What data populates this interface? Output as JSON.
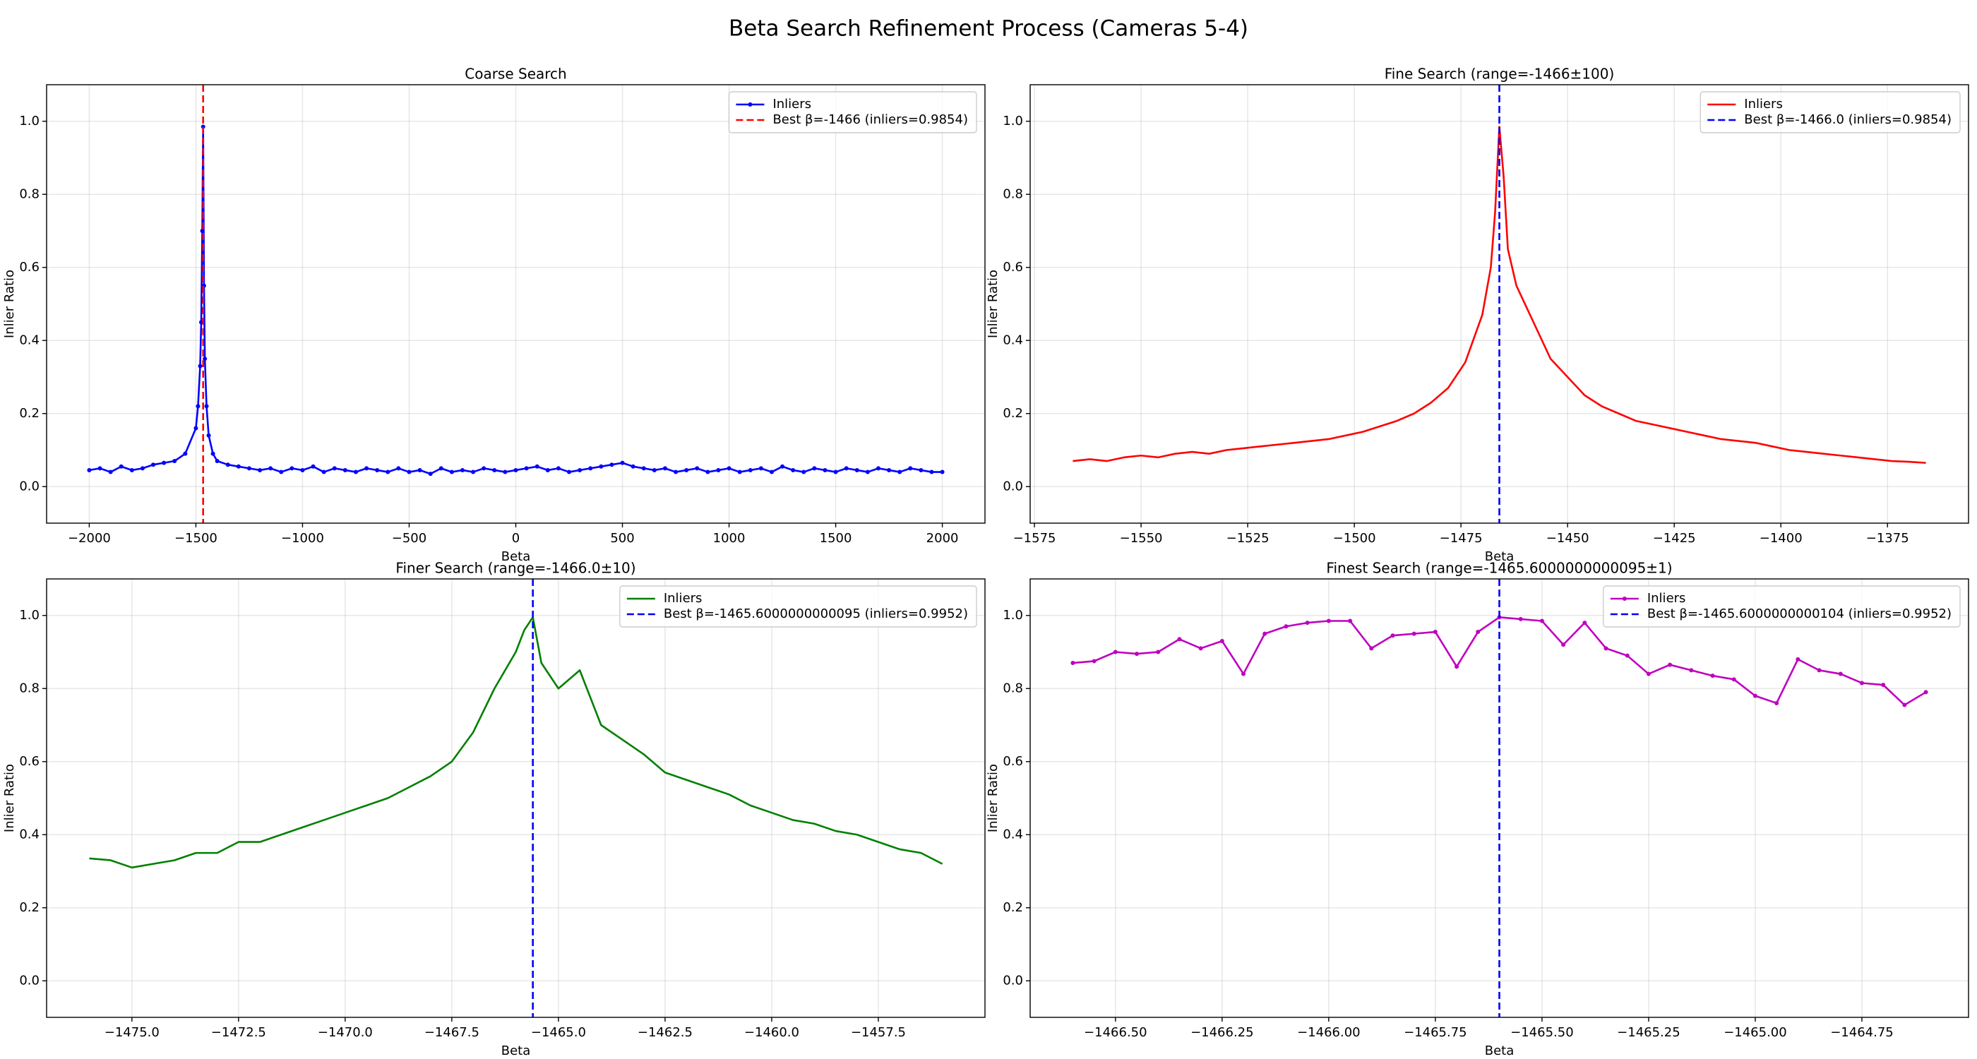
{
  "title": "Beta Search Refinement Process (Cameras 5-4)",
  "chart_data": [
    {
      "type": "line",
      "title": "Coarse Search",
      "x_label": "Beta",
      "y_label": "Inlier Ratio",
      "grid": true,
      "legend": "upper right",
      "xlim": [
        -2200,
        2200
      ],
      "ylim": [
        -0.1,
        1.1
      ],
      "xticks": [
        {
          "value": -2000,
          "label": "−2000"
        },
        {
          "value": -1500,
          "label": "−1500"
        },
        {
          "value": -1000,
          "label": "−1000"
        },
        {
          "value": -500,
          "label": "−500"
        },
        0,
        500,
        1000,
        1500,
        2000
      ],
      "yticks": [
        {
          "value": 0,
          "label": "0.0"
        },
        0.2,
        0.4,
        0.6,
        0.8,
        {
          "value": 1,
          "label": "1.0"
        }
      ],
      "x": [
        -2000,
        -1950,
        -1900,
        -1850,
        -1800,
        -1750,
        -1700,
        -1650,
        -1600,
        -1550,
        -1500,
        -1490,
        -1480,
        -1475,
        -1470,
        -1466,
        -1462,
        -1458,
        -1450,
        -1440,
        -1420,
        -1400,
        -1350,
        -1300,
        -1250,
        -1200,
        -1150,
        -1100,
        -1050,
        -1000,
        -950,
        -900,
        -850,
        -800,
        -750,
        -700,
        -650,
        -600,
        -550,
        -500,
        -450,
        -400,
        -350,
        -300,
        -250,
        -200,
        -150,
        -100,
        -50,
        0,
        50,
        100,
        150,
        200,
        250,
        300,
        350,
        400,
        450,
        500,
        550,
        600,
        650,
        700,
        750,
        800,
        850,
        900,
        950,
        1000,
        1050,
        1100,
        1150,
        1200,
        1250,
        1300,
        1350,
        1400,
        1450,
        1500,
        1550,
        1600,
        1650,
        1700,
        1750,
        1800,
        1850,
        1900,
        1950,
        2000
      ],
      "series": [
        {
          "name": "Inliers",
          "color": "#0000ff",
          "marker": "o",
          "values": [
            0.045,
            0.05,
            0.04,
            0.055,
            0.045,
            0.05,
            0.06,
            0.065,
            0.07,
            0.09,
            0.16,
            0.22,
            0.33,
            0.45,
            0.7,
            0.985,
            0.55,
            0.35,
            0.22,
            0.14,
            0.09,
            0.07,
            0.06,
            0.055,
            0.05,
            0.045,
            0.05,
            0.04,
            0.05,
            0.045,
            0.055,
            0.04,
            0.05,
            0.045,
            0.04,
            0.05,
            0.045,
            0.04,
            0.05,
            0.04,
            0.045,
            0.035,
            0.05,
            0.04,
            0.045,
            0.04,
            0.05,
            0.045,
            0.04,
            0.045,
            0.05,
            0.055,
            0.045,
            0.05,
            0.04,
            0.045,
            0.05,
            0.055,
            0.06,
            0.065,
            0.055,
            0.05,
            0.045,
            0.05,
            0.04,
            0.045,
            0.05,
            0.04,
            0.045,
            0.05,
            0.04,
            0.045,
            0.05,
            0.04,
            0.055,
            0.045,
            0.04,
            0.05,
            0.045,
            0.04,
            0.05,
            0.045,
            0.04,
            0.05,
            0.045,
            0.04,
            0.05,
            0.045,
            0.04,
            0.04
          ]
        }
      ],
      "vlines": [
        {
          "name": "Best β=-1466 (inliers=0.9854)",
          "value": -1466,
          "color": "#ff0000"
        }
      ]
    },
    {
      "type": "line",
      "title": "Fine Search (range=-1466±100)",
      "x_label": "Beta",
      "y_label": "Inlier Ratio",
      "grid": true,
      "legend": "upper right",
      "xlim": [
        -1576,
        -1356
      ],
      "ylim": [
        -0.1,
        1.1
      ],
      "xticks": [
        {
          "value": -1575,
          "label": "−1575"
        },
        {
          "value": -1550,
          "label": "−1550"
        },
        {
          "value": -1525,
          "label": "−1525"
        },
        {
          "value": -1500,
          "label": "−1500"
        },
        {
          "value": -1475,
          "label": "−1475"
        },
        {
          "value": -1450,
          "label": "−1450"
        },
        {
          "value": -1425,
          "label": "−1425"
        },
        {
          "value": -1400,
          "label": "−1400"
        },
        {
          "value": -1375,
          "label": "−1375"
        }
      ],
      "yticks": [
        {
          "value": 0,
          "label": "0.0"
        },
        0.2,
        0.4,
        0.6,
        0.8,
        {
          "value": 1,
          "label": "1.0"
        }
      ],
      "x": [
        -1566,
        -1562,
        -1558,
        -1554,
        -1550,
        -1546,
        -1542,
        -1538,
        -1534,
        -1530,
        -1526,
        -1522,
        -1518,
        -1514,
        -1510,
        -1506,
        -1502,
        -1498,
        -1494,
        -1490,
        -1486,
        -1482,
        -1478,
        -1474,
        -1470,
        -1468,
        -1467,
        -1466,
        -1465,
        -1464,
        -1462,
        -1458,
        -1454,
        -1450,
        -1446,
        -1442,
        -1438,
        -1434,
        -1430,
        -1426,
        -1422,
        -1418,
        -1414,
        -1410,
        -1406,
        -1402,
        -1398,
        -1394,
        -1390,
        -1386,
        -1382,
        -1378,
        -1374,
        -1370,
        -1366
      ],
      "series": [
        {
          "name": "Inliers",
          "color": "#ff0000",
          "values": [
            0.07,
            0.075,
            0.07,
            0.08,
            0.085,
            0.08,
            0.09,
            0.095,
            0.09,
            0.1,
            0.105,
            0.11,
            0.115,
            0.12,
            0.125,
            0.13,
            0.14,
            0.15,
            0.165,
            0.18,
            0.2,
            0.23,
            0.27,
            0.34,
            0.47,
            0.6,
            0.75,
            0.985,
            0.85,
            0.65,
            0.55,
            0.45,
            0.35,
            0.3,
            0.25,
            0.22,
            0.2,
            0.18,
            0.17,
            0.16,
            0.15,
            0.14,
            0.13,
            0.125,
            0.12,
            0.11,
            0.1,
            0.095,
            0.09,
            0.085,
            0.08,
            0.075,
            0.07,
            0.068,
            0.065
          ]
        }
      ],
      "vlines": [
        {
          "name": "Best β=-1466.0 (inliers=0.9854)",
          "value": -1466.0,
          "color": "#0000ff"
        }
      ]
    },
    {
      "type": "line",
      "title": "Finer Search (range=-1466.0±10)",
      "x_label": "Beta",
      "y_label": "Inlier Ratio",
      "grid": true,
      "legend": "upper right",
      "xlim": [
        -1477,
        -1455
      ],
      "ylim": [
        -0.1,
        1.1
      ],
      "xticks": [
        {
          "value": -1475,
          "label": "−1475.0"
        },
        {
          "value": -1472.5,
          "label": "−1472.5"
        },
        {
          "value": -1470,
          "label": "−1470.0"
        },
        {
          "value": -1467.5,
          "label": "−1467.5"
        },
        {
          "value": -1465,
          "label": "−1465.0"
        },
        {
          "value": -1462.5,
          "label": "−1462.5"
        },
        {
          "value": -1460,
          "label": "−1460.0"
        },
        {
          "value": -1457.5,
          "label": "−1457.5"
        }
      ],
      "yticks": [
        {
          "value": 0,
          "label": "0.0"
        },
        0.2,
        0.4,
        0.6,
        0.8,
        {
          "value": 1,
          "label": "1.0"
        }
      ],
      "x": [
        -1476,
        -1475.5,
        -1475,
        -1474.5,
        -1474,
        -1473.5,
        -1473,
        -1472.5,
        -1472,
        -1471.5,
        -1471,
        -1470.5,
        -1470,
        -1469.5,
        -1469,
        -1468.5,
        -1468,
        -1467.5,
        -1467,
        -1466.5,
        -1466,
        -1465.8,
        -1465.6,
        -1465.4,
        -1465,
        -1464.5,
        -1464,
        -1463.5,
        -1463,
        -1462.5,
        -1462,
        -1461.5,
        -1461,
        -1460.5,
        -1460,
        -1459.5,
        -1459,
        -1458.5,
        -1458,
        -1457.5,
        -1457,
        -1456.5,
        -1456
      ],
      "series": [
        {
          "name": "Inliers",
          "color": "#008000",
          "values": [
            0.335,
            0.33,
            0.31,
            0.32,
            0.33,
            0.35,
            0.35,
            0.38,
            0.38,
            0.4,
            0.42,
            0.44,
            0.46,
            0.48,
            0.5,
            0.53,
            0.56,
            0.6,
            0.68,
            0.8,
            0.9,
            0.96,
            0.995,
            0.87,
            0.8,
            0.85,
            0.7,
            0.66,
            0.62,
            0.57,
            0.55,
            0.53,
            0.51,
            0.48,
            0.46,
            0.44,
            0.43,
            0.41,
            0.4,
            0.38,
            0.36,
            0.35,
            0.32
          ]
        }
      ],
      "vlines": [
        {
          "name": "Best β=-1465.6000000000095 (inliers=0.9952)",
          "value": -1465.6000000000095,
          "color": "#0000ff"
        }
      ]
    },
    {
      "type": "line",
      "title": "Finest Search (range=-1465.6000000000095±1)",
      "x_label": "Beta",
      "y_label": "Inlier Ratio",
      "grid": true,
      "legend": "upper right",
      "xlim": [
        -1466.7,
        -1464.5
      ],
      "ylim": [
        -0.1,
        1.1
      ],
      "xticks": [
        {
          "value": -1466.5,
          "label": "−1466.50"
        },
        {
          "value": -1466.25,
          "label": "−1466.25"
        },
        {
          "value": -1466,
          "label": "−1466.00"
        },
        {
          "value": -1465.75,
          "label": "−1465.75"
        },
        {
          "value": -1465.5,
          "label": "−1465.50"
        },
        {
          "value": -1465.25,
          "label": "−1465.25"
        },
        {
          "value": -1465,
          "label": "−1465.00"
        },
        {
          "value": -1464.75,
          "label": "−1464.75"
        }
      ],
      "yticks": [
        {
          "value": 0,
          "label": "0.0"
        },
        0.2,
        0.4,
        0.6,
        0.8,
        {
          "value": 1,
          "label": "1.0"
        }
      ],
      "x": [
        -1466.6,
        -1466.55,
        -1466.5,
        -1466.45,
        -1466.4,
        -1466.35,
        -1466.3,
        -1466.25,
        -1466.2,
        -1466.15,
        -1466.1,
        -1466.05,
        -1466.0,
        -1465.95,
        -1465.9,
        -1465.85,
        -1465.8,
        -1465.75,
        -1465.7,
        -1465.65,
        -1465.6,
        -1465.55,
        -1465.5,
        -1465.45,
        -1465.4,
        -1465.35,
        -1465.3,
        -1465.25,
        -1465.2,
        -1465.15,
        -1465.1,
        -1465.05,
        -1465.0,
        -1464.95,
        -1464.9,
        -1464.85,
        -1464.8,
        -1464.75,
        -1464.7,
        -1464.65,
        -1464.6
      ],
      "series": [
        {
          "name": "Inliers",
          "color": "#bf00bf",
          "marker": "o",
          "values": [
            0.87,
            0.875,
            0.9,
            0.895,
            0.9,
            0.935,
            0.91,
            0.93,
            0.84,
            0.95,
            0.97,
            0.98,
            0.985,
            0.985,
            0.91,
            0.945,
            0.95,
            0.955,
            0.86,
            0.955,
            0.995,
            0.99,
            0.985,
            0.92,
            0.98,
            0.91,
            0.89,
            0.84,
            0.865,
            0.85,
            0.835,
            0.825,
            0.78,
            0.76,
            0.88,
            0.85,
            0.84,
            0.815,
            0.81,
            0.755,
            0.79
          ]
        }
      ],
      "vlines": [
        {
          "name": "Best β=-1465.6000000000104 (inliers=0.9952)",
          "value": -1465.6000000000104,
          "color": "#0000ff"
        }
      ]
    }
  ]
}
